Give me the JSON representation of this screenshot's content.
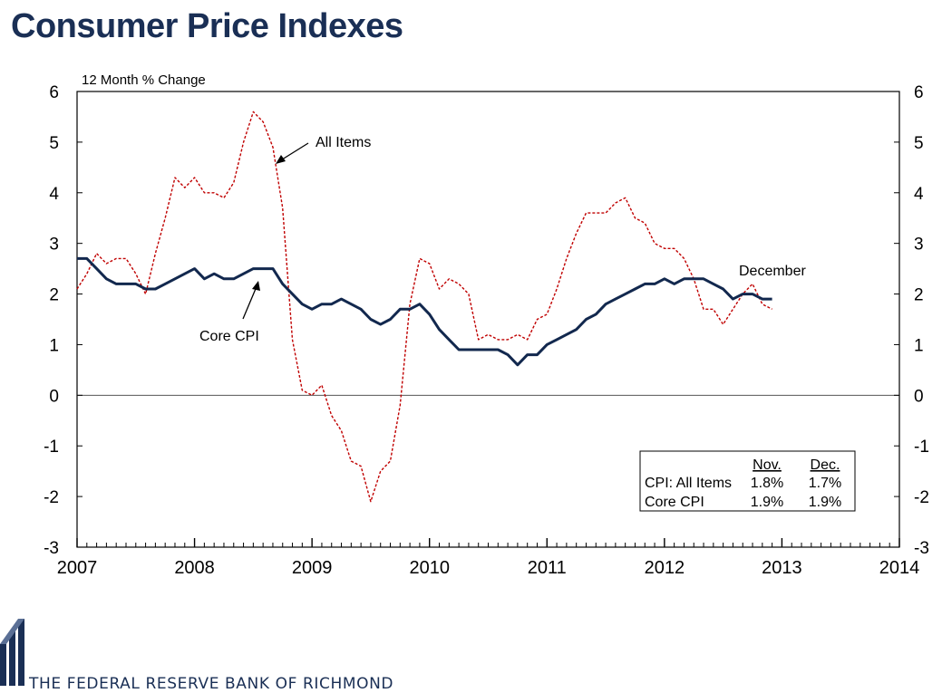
{
  "title": "Consumer Price Indexes",
  "footer_text": "THE FEDERAL RESERVE BANK OF RICHMOND",
  "colors": {
    "title": "#1a2f55",
    "core": "#12284e",
    "all": "#c00000",
    "axis": "#000000"
  },
  "chart_data": {
    "type": "line",
    "ylabel": "12 Month % Change",
    "ylim": [
      -3,
      6
    ],
    "yticks": [
      "-3",
      "-2",
      "-1",
      "0",
      "1",
      "2",
      "3",
      "4",
      "5",
      "6"
    ],
    "xlim": [
      2007,
      2014
    ],
    "xticks": [
      "2007",
      "2008",
      "2009",
      "2010",
      "2011",
      "2012",
      "2013",
      "2014"
    ],
    "zero_line": true,
    "series": [
      {
        "name": "All Items",
        "style": "dashed",
        "color": "#c00000",
        "x_start": 2007.0,
        "x_step": 0.0833333,
        "values": [
          2.1,
          2.4,
          2.8,
          2.6,
          2.7,
          2.7,
          2.4,
          2.0,
          2.8,
          3.5,
          4.3,
          4.1,
          4.3,
          4.0,
          4.0,
          3.9,
          4.2,
          5.0,
          5.6,
          5.4,
          4.9,
          3.7,
          1.1,
          0.1,
          0.0,
          0.2,
          -0.4,
          -0.7,
          -1.3,
          -1.4,
          -2.1,
          -1.5,
          -1.3,
          -0.2,
          1.8,
          2.7,
          2.6,
          2.1,
          2.3,
          2.2,
          2.0,
          1.1,
          1.2,
          1.1,
          1.1,
          1.2,
          1.1,
          1.5,
          1.6,
          2.1,
          2.7,
          3.2,
          3.6,
          3.6,
          3.6,
          3.8,
          3.9,
          3.5,
          3.4,
          3.0,
          2.9,
          2.9,
          2.7,
          2.3,
          1.7,
          1.7,
          1.4,
          1.7,
          2.0,
          2.2,
          1.8,
          1.7
        ]
      },
      {
        "name": "Core CPI",
        "style": "solid",
        "color": "#12284e",
        "x_start": 2007.0,
        "x_step": 0.0833333,
        "values": [
          2.7,
          2.7,
          2.5,
          2.3,
          2.2,
          2.2,
          2.2,
          2.1,
          2.1,
          2.2,
          2.3,
          2.4,
          2.5,
          2.3,
          2.4,
          2.3,
          2.3,
          2.4,
          2.5,
          2.5,
          2.5,
          2.2,
          2.0,
          1.8,
          1.7,
          1.8,
          1.8,
          1.9,
          1.8,
          1.7,
          1.5,
          1.4,
          1.5,
          1.7,
          1.7,
          1.8,
          1.6,
          1.3,
          1.1,
          0.9,
          0.9,
          0.9,
          0.9,
          0.9,
          0.8,
          0.6,
          0.8,
          0.8,
          1.0,
          1.1,
          1.2,
          1.3,
          1.5,
          1.6,
          1.8,
          1.9,
          2.0,
          2.1,
          2.2,
          2.2,
          2.3,
          2.2,
          2.3,
          2.3,
          2.3,
          2.2,
          2.1,
          1.9,
          2.0,
          2.0,
          1.9,
          1.9
        ]
      }
    ],
    "annotations": {
      "all_items": "All Items",
      "core_cpi": "Core CPI",
      "december": "December"
    },
    "legend_table": {
      "headers": [
        "",
        "Nov.",
        "Dec."
      ],
      "rows": [
        [
          "CPI: All Items",
          "1.8%",
          "1.7%"
        ],
        [
          "Core CPI",
          "1.9%",
          "1.9%"
        ]
      ]
    }
  }
}
